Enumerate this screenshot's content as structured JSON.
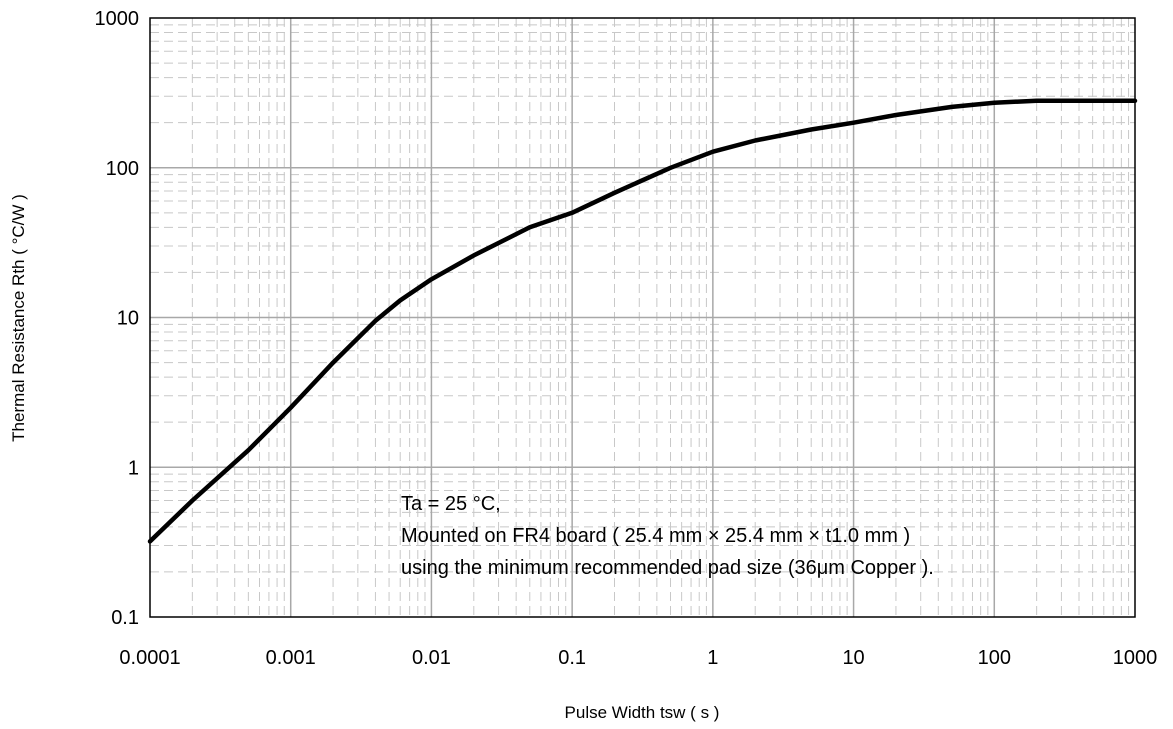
{
  "chart_data": {
    "type": "line",
    "title": "",
    "xlabel": "Pulse Width tsw ( s )",
    "ylabel": "Thermal Resistance Rth ( °C/W )",
    "x_scale": "log",
    "y_scale": "log",
    "xlim": [
      0.0001,
      1000
    ],
    "ylim": [
      0.1,
      1000
    ],
    "x_tick_labels": [
      "0.0001",
      "0.001",
      "0.01",
      "0.1",
      "1",
      "10",
      "100",
      "1000"
    ],
    "y_tick_labels": [
      "0.1",
      "1",
      "10",
      "100",
      "1000"
    ],
    "grid": true,
    "annotations": [
      "Ta = 25 °C,",
      "Mounted on FR4 board  ( 25.4 mm × 25.4 mm × t1.0 mm )",
      "using the minimum recommended pad size (36μm Copper )."
    ],
    "series": [
      {
        "x": [
          0.0001,
          0.0002,
          0.0005,
          0.001,
          0.002,
          0.004,
          0.006,
          0.01,
          0.02,
          0.05,
          0.1,
          0.2,
          0.5,
          1,
          2,
          5,
          10,
          20,
          50,
          100,
          200,
          500,
          1000
        ],
        "y": [
          0.32,
          0.6,
          1.3,
          2.5,
          5,
          9.5,
          13,
          18,
          26,
          40,
          50,
          68,
          100,
          128,
          152,
          180,
          200,
          225,
          255,
          272,
          280,
          280,
          280
        ]
      }
    ]
  }
}
